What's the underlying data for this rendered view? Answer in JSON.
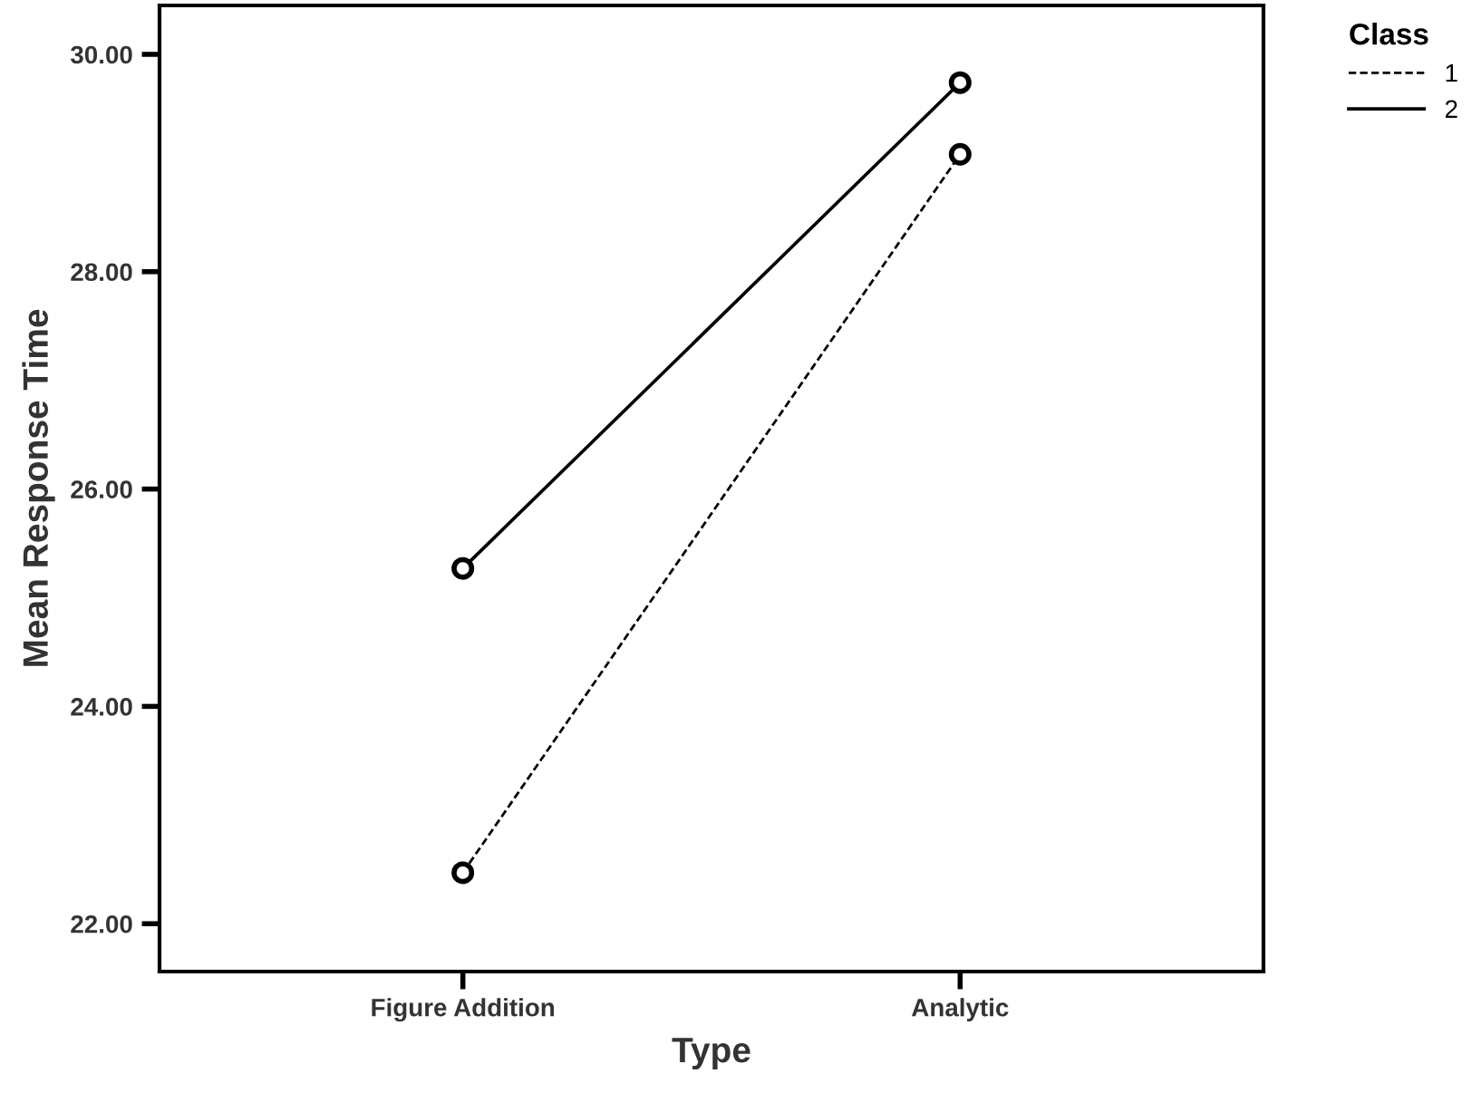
{
  "chart_data": {
    "type": "line",
    "xlabel": "Type",
    "ylabel": "Mean Response Time",
    "legend_title": "Class",
    "categories": [
      "Figure Addition",
      "Analytic"
    ],
    "series": [
      {
        "name": "1",
        "color": "#000000",
        "values": [
          22.47,
          29.08
        ],
        "line_style": "dashed"
      },
      {
        "name": "2",
        "color": "#000000",
        "values": [
          25.27,
          29.74
        ],
        "line_style": "solid"
      }
    ],
    "ylim": [
      21.56,
      30.45
    ],
    "yticks": [
      {
        "value": 22,
        "label": "22.00"
      },
      {
        "value": 24,
        "label": "24.00"
      },
      {
        "value": 26,
        "label": "26.00"
      },
      {
        "value": 28,
        "label": "28.00"
      },
      {
        "value": 30,
        "label": "30.00"
      }
    ],
    "marker": "circle",
    "grid": false,
    "legend": "top right"
  }
}
